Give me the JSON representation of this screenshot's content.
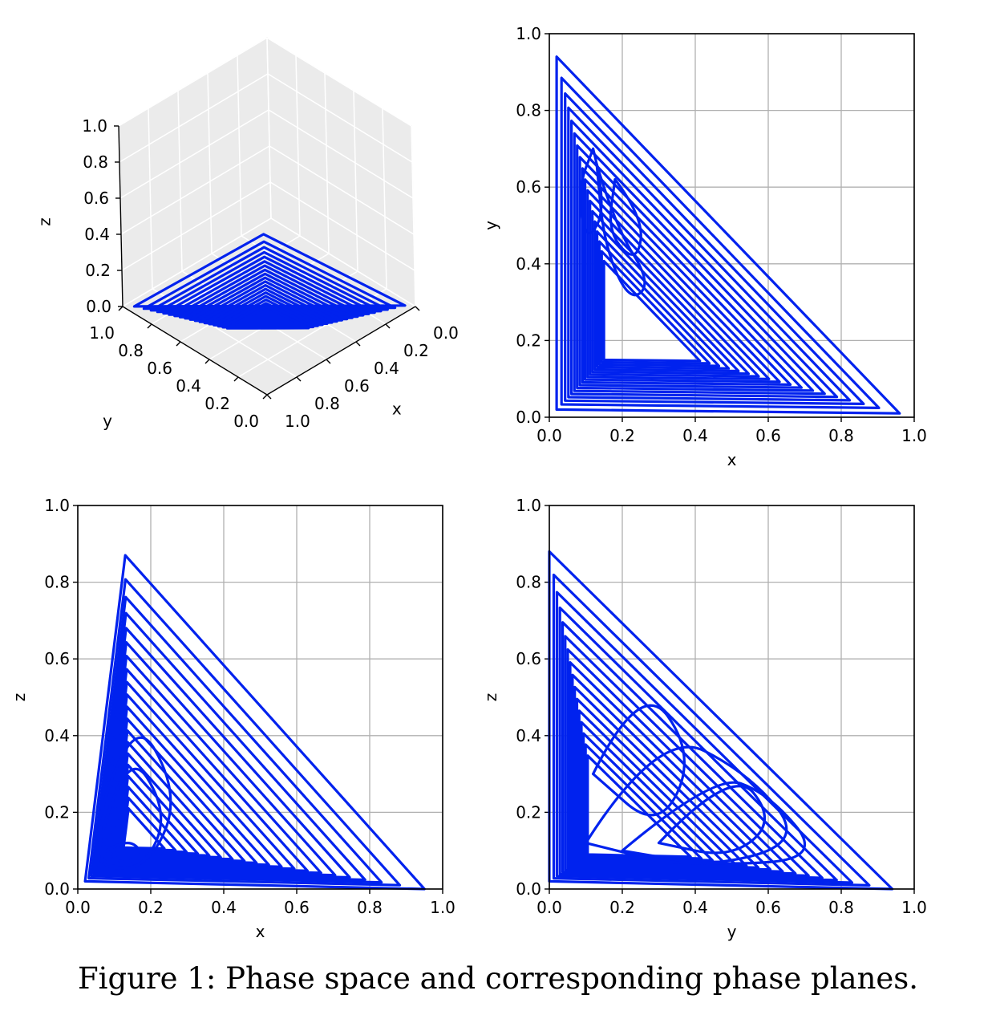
{
  "caption": "Figure 1: Phase space and corresponding phase planes.",
  "colors": {
    "curve": "#0022ee",
    "grid": "#b0b0b0",
    "pane": "#ebebeb"
  },
  "chart_data": [
    {
      "type": "line3d",
      "title": "",
      "xlabel": "x",
      "ylabel": "y",
      "zlabel": "z",
      "xlim": [
        0,
        1
      ],
      "ylim": [
        0,
        1
      ],
      "zlim": [
        0,
        1
      ],
      "ticks": {
        "x": [
          "0.0",
          "0.2",
          "0.4",
          "0.6",
          "0.8",
          "1.0"
        ],
        "y": [
          "0.0",
          "0.2",
          "0.4",
          "0.6",
          "0.8",
          "1.0"
        ],
        "z": [
          "0.0",
          "0.2",
          "0.4",
          "0.6",
          "0.8",
          "1.0"
        ]
      },
      "grid": true,
      "series": [
        {
          "x": [
            0.95,
            0.02,
            0.02,
            0.95
          ],
          "y": [
            0.02,
            0.94,
            0.02,
            0.02
          ],
          "z": [
            0.02,
            0.02,
            0.87,
            0.02
          ]
        }
      ]
    },
    {
      "type": "line",
      "title": "",
      "xlabel": "x",
      "ylabel": "y",
      "xlim": [
        0,
        1
      ],
      "ylim": [
        0,
        1
      ],
      "grid": true,
      "ticks": {
        "x": [
          "0.0",
          "0.2",
          "0.4",
          "0.6",
          "0.8",
          "1.0"
        ],
        "y": [
          "0.0",
          "0.2",
          "0.4",
          "0.6",
          "0.8",
          "1.0"
        ]
      },
      "series": [
        {
          "x": [
            0.02,
            0.02,
            0.96,
            0.02
          ],
          "y": [
            0.94,
            0.02,
            0.01,
            0.94
          ]
        }
      ]
    },
    {
      "type": "line",
      "title": "",
      "xlabel": "x",
      "ylabel": "z",
      "xlim": [
        0,
        1
      ],
      "ylim": [
        0,
        1
      ],
      "grid": true,
      "ticks": {
        "x": [
          "0.0",
          "0.2",
          "0.4",
          "0.6",
          "0.8",
          "1.0"
        ],
        "y": [
          "0.0",
          "0.2",
          "0.4",
          "0.6",
          "0.8",
          "1.0"
        ]
      },
      "series": [
        {
          "x": [
            0.02,
            0.13,
            0.95,
            0.02
          ],
          "y": [
            0.02,
            0.87,
            0.0,
            0.02
          ]
        }
      ]
    },
    {
      "type": "line",
      "title": "",
      "xlabel": "y",
      "ylabel": "z",
      "xlim": [
        0,
        1
      ],
      "ylim": [
        0,
        1
      ],
      "grid": true,
      "ticks": {
        "x": [
          "0.0",
          "0.2",
          "0.4",
          "0.6",
          "0.8",
          "1.0"
        ],
        "y": [
          "0.0",
          "0.2",
          "0.4",
          "0.6",
          "0.8",
          "1.0"
        ]
      },
      "series": [
        {
          "x": [
            0.0,
            0.0,
            0.94,
            0.0
          ],
          "y": [
            0.88,
            0.02,
            0.0,
            0.88
          ]
        }
      ]
    }
  ]
}
